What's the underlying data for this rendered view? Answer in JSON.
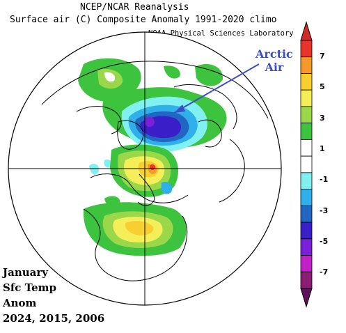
{
  "header": {
    "title_line1": "NCEP/NCAR Reanalysis",
    "title_line2": "Surface air (C) Composite Anomaly 1991-2020 climo",
    "credit": "NOAA Physical Sciences Laboratory"
  },
  "annotation": {
    "arctic_line1": "Arctic",
    "arctic_line2": "Air"
  },
  "note": {
    "line1": "January",
    "line2": "Sfc Temp",
    "line3": "Anom",
    "line4": "2024, 2015, 2006"
  },
  "colorbar": {
    "tick_labels": [
      "7",
      "5",
      "3",
      "1",
      "-1",
      "-3",
      "-5",
      "-7"
    ],
    "colors": [
      "#e8342c",
      "#f49a2a",
      "#f7cf2f",
      "#f4ef58",
      "#9ad84a",
      "#3ec33f",
      "#ffffff",
      "#ffffff",
      "#80f0f0",
      "#2fb0ea",
      "#2266c4",
      "#3a1fc8",
      "#7a20d8",
      "#c220c8",
      "#8a1c74"
    ],
    "top_arrow_color": "#d02a26",
    "bottom_arrow_color": "#5a1358"
  }
}
